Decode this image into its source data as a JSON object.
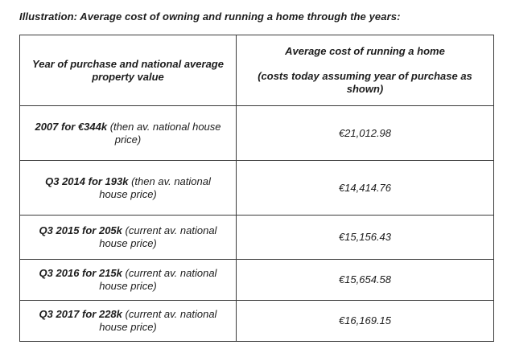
{
  "caption": "Illustration: Average cost of owning and running a home through the years:",
  "table": {
    "headers": {
      "year": "Year of purchase and national average property value",
      "cost_line1": "Average cost of running a home",
      "cost_line2": "(costs today assuming year of purchase as shown)"
    },
    "rows": [
      {
        "year_bold": "2007 for €344k",
        "year_rest": " (then av. national house price)",
        "cost": "€21,012.98"
      },
      {
        "year_bold": "Q3 2014 for 193k",
        "year_rest": " (then av. national house price)",
        "cost": "€14,414.76"
      },
      {
        "year_bold": "Q3 2015 for 205k",
        "year_rest": " (current av. national house price)",
        "cost": "€15,156.43"
      },
      {
        "year_bold": "Q3 2016 for 215k",
        "year_rest": " (current av. national house price)",
        "cost": "€15,654.58"
      },
      {
        "year_bold": "Q3 2017 for 228k",
        "year_rest": " (current av. national house price)",
        "cost": "€16,169.15"
      }
    ]
  }
}
